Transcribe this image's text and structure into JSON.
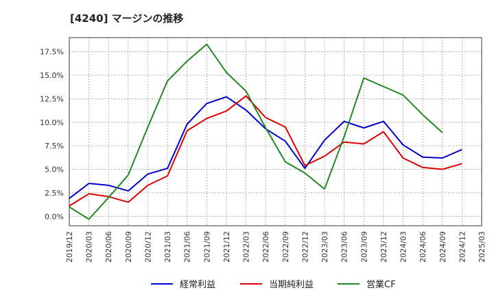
{
  "chart_data": {
    "type": "line",
    "title": "[4240]  マージンの推移",
    "xlabel": "",
    "ylabel": "",
    "x": [
      "2019/12",
      "2020/03",
      "2020/06",
      "2020/09",
      "2020/12",
      "2021/03",
      "2021/06",
      "2021/09",
      "2021/12",
      "2022/03",
      "2022/06",
      "2022/09",
      "2022/12",
      "2023/03",
      "2023/06",
      "2023/09",
      "2023/12",
      "2024/03",
      "2024/06",
      "2024/09",
      "2024/12",
      "2025/03"
    ],
    "y_ticks": [
      "0.0%",
      "2.5%",
      "5.0%",
      "7.5%",
      "10.0%",
      "12.5%",
      "15.0%",
      "17.5%"
    ],
    "ylim": [
      -1.0,
      19.0
    ],
    "grid": true,
    "legend_position": "bottom",
    "series": [
      {
        "name": "経常利益",
        "color": "#0000cc",
        "values": [
          1.9,
          3.5,
          3.3,
          2.7,
          4.5,
          5.1,
          9.8,
          12.0,
          12.7,
          11.3,
          9.3,
          8.0,
          5.1,
          8.1,
          10.1,
          9.4,
          10.1,
          7.6,
          6.3,
          6.2,
          7.1,
          null
        ]
      },
      {
        "name": "当期純利益",
        "color": "#dd0000",
        "values": [
          1.1,
          2.4,
          2.1,
          1.5,
          3.3,
          4.3,
          9.1,
          10.4,
          11.2,
          12.8,
          10.5,
          9.5,
          5.4,
          6.4,
          7.9,
          7.7,
          9.0,
          6.2,
          5.2,
          5.0,
          5.6,
          null
        ]
      },
      {
        "name": "営業CF",
        "color": "#228822",
        "values": [
          1.0,
          -0.3,
          2.0,
          4.4,
          9.5,
          14.4,
          16.5,
          18.3,
          15.3,
          13.3,
          9.4,
          5.8,
          4.6,
          2.9,
          8.5,
          14.7,
          13.8,
          12.9,
          10.8,
          8.9,
          null,
          null
        ]
      }
    ]
  }
}
